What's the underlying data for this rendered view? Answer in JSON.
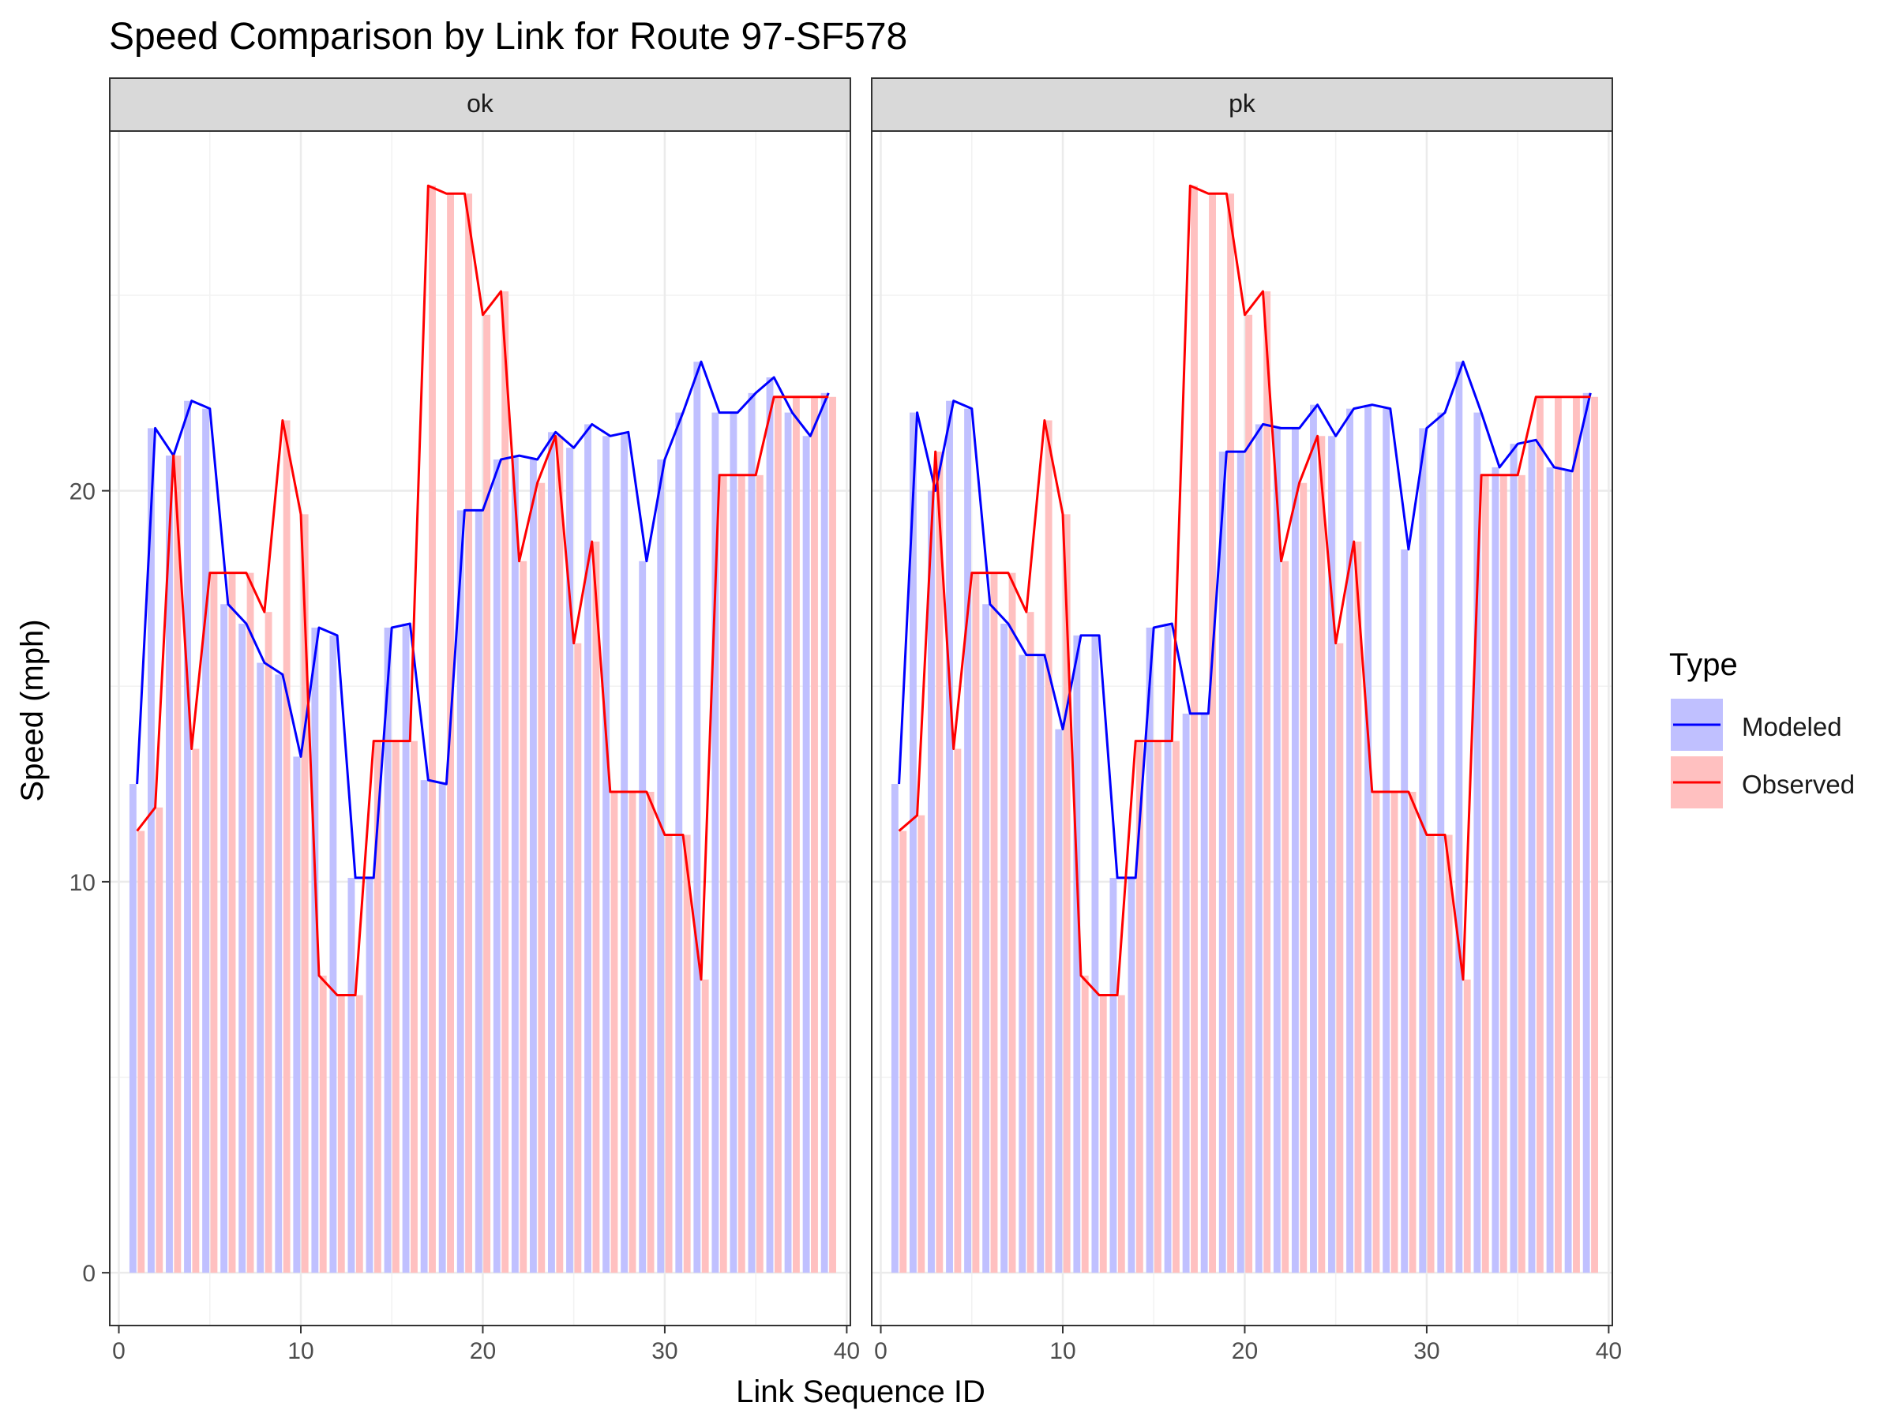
{
  "chart_data": {
    "type": "bar",
    "title": "Speed Comparison by Link for Route 97-SF578",
    "xlabel": "Link Sequence ID",
    "ylabel": "Speed (mph)",
    "xlim": [
      -0.5,
      40.2
    ],
    "ylim": [
      -1.35,
      29.2
    ],
    "x_ticks": [
      0,
      10,
      20,
      30,
      40
    ],
    "y_ticks": [
      0,
      10,
      20
    ],
    "grid": true,
    "legend": {
      "title": "Type",
      "position": "right",
      "entries": [
        {
          "name": "Modeled",
          "line_color": "#0000ff",
          "fill_color": "#c0c0ff"
        },
        {
          "name": "Observed",
          "line_color": "#ff0000",
          "fill_color": "#ffc0c0"
        }
      ]
    },
    "panels": [
      {
        "label": "ok",
        "x": [
          1,
          2,
          3,
          4,
          5,
          6,
          7,
          8,
          9,
          10,
          11,
          12,
          13,
          14,
          15,
          16,
          17,
          18,
          19,
          20,
          21,
          22,
          23,
          24,
          25,
          26,
          27,
          28,
          29,
          30,
          31,
          32,
          33,
          34,
          35,
          36,
          37,
          38,
          39
        ],
        "series": [
          {
            "name": "Modeled",
            "values": [
              12.5,
              21.6,
              20.9,
              22.3,
              22.1,
              17.1,
              16.6,
              15.6,
              15.3,
              13.2,
              16.5,
              16.3,
              10.1,
              10.1,
              16.5,
              16.6,
              12.6,
              12.5,
              19.5,
              19.5,
              20.8,
              20.9,
              20.8,
              21.5,
              21.1,
              21.7,
              21.4,
              21.5,
              18.2,
              20.8,
              22.0,
              23.3,
              22.0,
              22.0,
              22.5,
              22.9,
              22.0,
              21.4,
              22.5
            ]
          },
          {
            "name": "Observed",
            "values": [
              11.3,
              11.9,
              20.9,
              13.4,
              17.9,
              17.9,
              17.9,
              16.9,
              21.8,
              19.4,
              7.6,
              7.1,
              7.1,
              13.6,
              13.6,
              13.6,
              27.8,
              27.6,
              27.6,
              24.5,
              25.1,
              18.2,
              20.2,
              21.4,
              16.1,
              18.7,
              12.3,
              12.3,
              12.3,
              11.2,
              11.2,
              7.5,
              20.4,
              20.4,
              20.4,
              22.4,
              22.4,
              22.4,
              22.4
            ]
          }
        ]
      },
      {
        "label": "pk",
        "x": [
          1,
          2,
          3,
          4,
          5,
          6,
          7,
          8,
          9,
          10,
          11,
          12,
          13,
          14,
          15,
          16,
          17,
          18,
          19,
          20,
          21,
          22,
          23,
          24,
          25,
          26,
          27,
          28,
          29,
          30,
          31,
          32,
          33,
          34,
          35,
          36,
          37,
          38,
          39
        ],
        "series": [
          {
            "name": "Modeled",
            "values": [
              12.5,
              22.0,
              20.0,
              22.3,
              22.1,
              17.1,
              16.6,
              15.8,
              15.8,
              13.9,
              16.3,
              16.3,
              10.1,
              10.1,
              16.5,
              16.6,
              14.3,
              14.3,
              21.0,
              21.0,
              21.7,
              21.6,
              21.6,
              22.2,
              21.4,
              22.1,
              22.2,
              22.1,
              18.5,
              21.6,
              22.0,
              23.3,
              22.0,
              20.6,
              21.2,
              21.3,
              20.6,
              20.5,
              22.5
            ]
          },
          {
            "name": "Observed",
            "values": [
              11.3,
              11.7,
              21.0,
              13.4,
              17.9,
              17.9,
              17.9,
              16.9,
              21.8,
              19.4,
              7.6,
              7.1,
              7.1,
              13.6,
              13.6,
              13.6,
              27.8,
              27.6,
              27.6,
              24.5,
              25.1,
              18.2,
              20.2,
              21.4,
              16.1,
              18.7,
              12.3,
              12.3,
              12.3,
              11.2,
              11.2,
              7.5,
              20.4,
              20.4,
              20.4,
              22.4,
              22.4,
              22.4,
              22.4
            ]
          }
        ]
      }
    ]
  }
}
